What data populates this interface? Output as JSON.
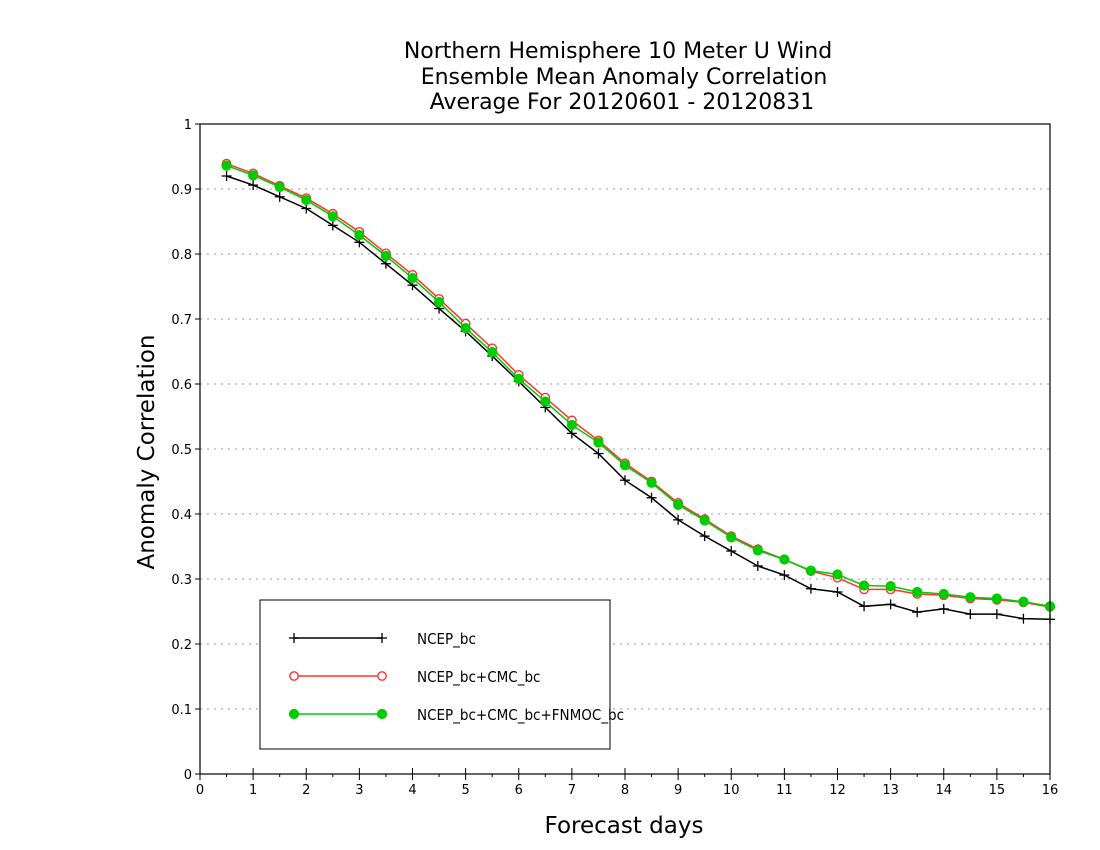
{
  "chart_data": {
    "type": "line",
    "title": [
      "Northern Hemisphere 10 Meter U Wind",
      "Ensemble Mean Anomaly Correlation",
      "Average For 20120601 - 20120831"
    ],
    "xlabel": "Forecast days",
    "ylabel": "Anomaly Correlation",
    "xlim": [
      0,
      16
    ],
    "ylim": [
      0,
      1
    ],
    "xticks": [
      "0",
      "1",
      "2",
      "3",
      "4",
      "5",
      "6",
      "7",
      "8",
      "9",
      "10",
      "11",
      "12",
      "13",
      "14",
      "15",
      "16"
    ],
    "yticks": [
      "0",
      "0.1",
      "0.2",
      "0.3",
      "0.4",
      "0.5",
      "0.6",
      "0.7",
      "0.8",
      "0.9",
      "1"
    ],
    "grid": true,
    "legend_position": "bottom-left",
    "x": [
      0.5,
      1,
      1.5,
      2,
      2.5,
      3,
      3.5,
      4,
      4.5,
      5,
      5.5,
      6,
      6.5,
      7,
      7.5,
      8,
      8.5,
      9,
      9.5,
      10,
      10.5,
      11,
      11.5,
      12,
      12.5,
      13,
      13.5,
      14,
      14.5,
      15,
      15.5,
      16
    ],
    "series": [
      {
        "name": "NCEP_bc",
        "color": "#000000",
        "marker": "plus",
        "values": [
          0.92,
          0.906,
          0.888,
          0.87,
          0.844,
          0.818,
          0.785,
          0.752,
          0.716,
          0.681,
          0.643,
          0.604,
          0.564,
          0.524,
          0.493,
          0.452,
          0.425,
          0.391,
          0.366,
          0.343,
          0.32,
          0.306,
          0.285,
          0.28,
          0.258,
          0.261,
          0.249,
          0.254,
          0.246,
          0.246,
          0.239,
          0.238
        ]
      },
      {
        "name": "NCEP_bc+CMC_bc",
        "color": "#ff3333",
        "marker": "circle-open",
        "values": [
          0.939,
          0.924,
          0.905,
          0.886,
          0.862,
          0.834,
          0.801,
          0.768,
          0.731,
          0.693,
          0.655,
          0.614,
          0.579,
          0.544,
          0.513,
          0.478,
          0.45,
          0.417,
          0.392,
          0.366,
          0.346,
          0.33,
          0.312,
          0.302,
          0.284,
          0.284,
          0.277,
          0.275,
          0.27,
          0.268,
          0.264,
          0.257
        ]
      },
      {
        "name": "NCEP_bc+CMC_bc+FNMOC_bc",
        "color": "#00cc00",
        "marker": "circle-filled",
        "values": [
          0.936,
          0.921,
          0.903,
          0.883,
          0.858,
          0.829,
          0.797,
          0.763,
          0.726,
          0.686,
          0.649,
          0.608,
          0.573,
          0.537,
          0.51,
          0.475,
          0.448,
          0.414,
          0.39,
          0.364,
          0.344,
          0.33,
          0.313,
          0.307,
          0.29,
          0.289,
          0.28,
          0.277,
          0.272,
          0.27,
          0.265,
          0.258
        ]
      }
    ]
  }
}
